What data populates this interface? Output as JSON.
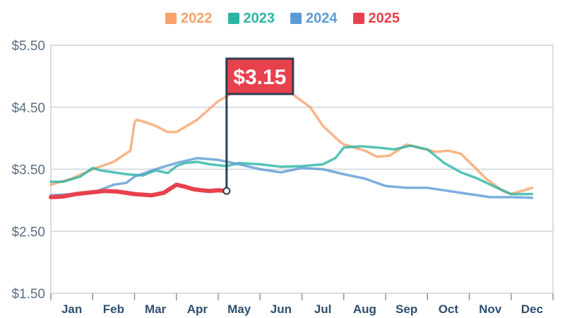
{
  "chart_data": {
    "type": "line",
    "title": "",
    "xlabel": "",
    "ylabel": "",
    "ylim": [
      1.5,
      5.5
    ],
    "yticks": [
      "$1.50",
      "$2.50",
      "$3.50",
      "$4.50",
      "$5.50"
    ],
    "ytick_values": [
      1.5,
      2.5,
      3.5,
      4.5,
      5.5
    ],
    "months": [
      "Jan",
      "Feb",
      "Mar",
      "Apr",
      "May",
      "Jun",
      "Jul",
      "Aug",
      "Sep",
      "Oct",
      "Nov",
      "Dec"
    ],
    "grid": true,
    "legend_position": "top-center",
    "series": [
      {
        "name": "2022",
        "color": "#f5a36b",
        "x": [
          0,
          0.5,
          1,
          1.5,
          1.9,
          2.0,
          2.05,
          2.3,
          2.5,
          2.8,
          3.0,
          3.5,
          4.0,
          4.4,
          4.9,
          5.2,
          5.7,
          6.2,
          6.5,
          6.9,
          7.0,
          7.5,
          7.8,
          8.1,
          8.5,
          8.9,
          9.2,
          9.5,
          9.8,
          10.1,
          10.4,
          10.8,
          11.0,
          11.1,
          11.5
        ],
        "values": [
          3.25,
          3.35,
          3.5,
          3.62,
          3.8,
          4.25,
          4.3,
          4.25,
          4.2,
          4.1,
          4.1,
          4.3,
          4.6,
          4.75,
          4.95,
          4.85,
          4.75,
          4.5,
          4.2,
          3.95,
          3.9,
          3.8,
          3.7,
          3.72,
          3.9,
          3.83,
          3.78,
          3.8,
          3.75,
          3.55,
          3.35,
          3.15,
          3.1,
          3.12,
          3.2
        ]
      },
      {
        "name": "2023",
        "color": "#2bb5a4",
        "x": [
          0,
          0.3,
          0.7,
          1.0,
          1.2,
          1.5,
          1.8,
          2.2,
          2.5,
          2.8,
          3.0,
          3.2,
          3.5,
          3.8,
          4.2,
          4.5,
          5.0,
          5.5,
          6.0,
          6.5,
          6.8,
          7.0,
          7.4,
          7.8,
          8.2,
          8.6,
          9.0,
          9.4,
          9.8,
          10.2,
          10.6,
          11.0,
          11.5
        ],
        "values": [
          3.3,
          3.3,
          3.38,
          3.52,
          3.48,
          3.45,
          3.42,
          3.4,
          3.48,
          3.44,
          3.55,
          3.6,
          3.62,
          3.58,
          3.55,
          3.6,
          3.58,
          3.54,
          3.55,
          3.58,
          3.68,
          3.85,
          3.87,
          3.85,
          3.82,
          3.88,
          3.82,
          3.6,
          3.45,
          3.35,
          3.22,
          3.1,
          3.1
        ]
      },
      {
        "name": "2024",
        "color": "#5b9bd5",
        "x": [
          0,
          0.5,
          1.0,
          1.5,
          1.8,
          2.0,
          2.5,
          3.0,
          3.5,
          4.0,
          4.5,
          5.0,
          5.5,
          6.0,
          6.5,
          7.0,
          7.5,
          8.0,
          8.5,
          9.0,
          9.5,
          10.0,
          10.5,
          11.0,
          11.5
        ],
        "values": [
          3.08,
          3.1,
          3.12,
          3.25,
          3.28,
          3.38,
          3.5,
          3.6,
          3.68,
          3.65,
          3.58,
          3.5,
          3.45,
          3.52,
          3.5,
          3.42,
          3.35,
          3.23,
          3.2,
          3.2,
          3.15,
          3.1,
          3.05,
          3.05,
          3.04
        ]
      },
      {
        "name": "2025",
        "color": "#e8414e",
        "x": [
          0,
          0.3,
          0.6,
          1.0,
          1.3,
          1.6,
          2.0,
          2.4,
          2.7,
          3.0,
          3.2,
          3.4,
          3.6,
          3.8,
          4.0,
          4.2
        ],
        "values": [
          3.05,
          3.06,
          3.1,
          3.13,
          3.15,
          3.14,
          3.1,
          3.08,
          3.12,
          3.25,
          3.22,
          3.18,
          3.16,
          3.15,
          3.16,
          3.15
        ]
      }
    ],
    "annotation": {
      "label": "$3.15",
      "x": 4.2,
      "value": 3.15,
      "series": "2025"
    }
  }
}
